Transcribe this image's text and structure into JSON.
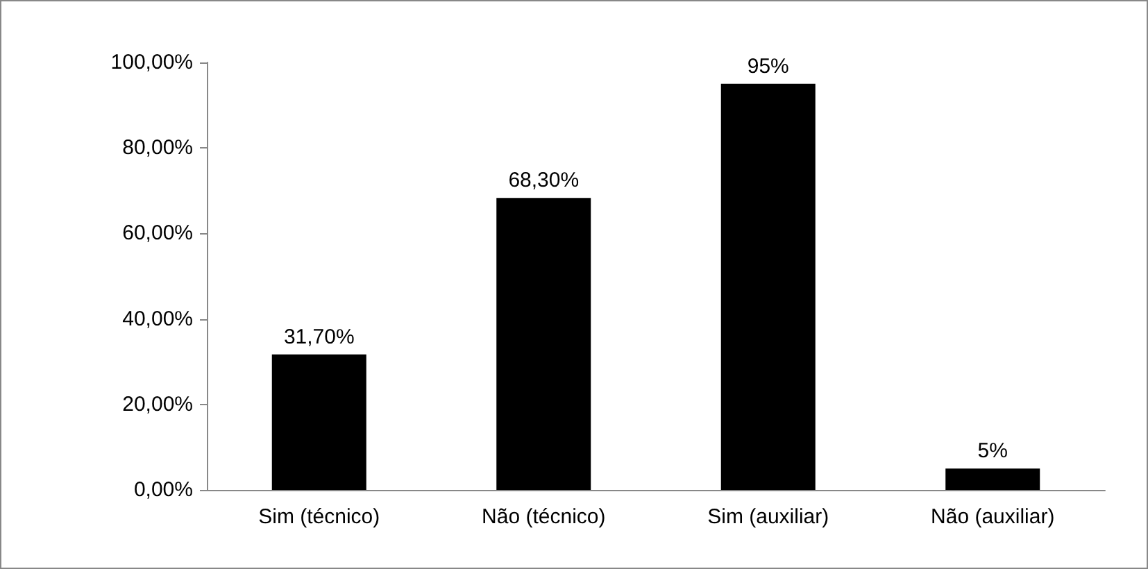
{
  "chart_data": {
    "type": "bar",
    "categories": [
      "Sim (técnico)",
      "Não (técnico)",
      "Sim (auxiliar)",
      "Não (auxiliar)"
    ],
    "values": [
      31.7,
      68.3,
      95,
      5
    ],
    "value_labels": [
      "31,70%",
      "68,30%",
      "95%",
      "5%"
    ],
    "color": "#000000",
    "ylim": [
      0,
      100
    ],
    "yticks": [
      {
        "value": 0,
        "label": "0,00%"
      },
      {
        "value": 20,
        "label": "20,00%"
      },
      {
        "value": 40,
        "label": "40,00%"
      },
      {
        "value": 60,
        "label": "60,00%"
      },
      {
        "value": 80,
        "label": "80,00%"
      },
      {
        "value": 100,
        "label": "100,00%"
      }
    ],
    "grid": false
  }
}
